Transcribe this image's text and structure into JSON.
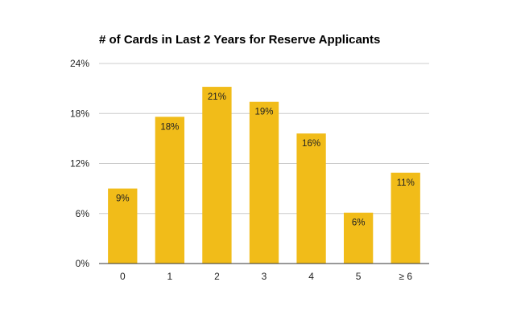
{
  "chart_data": {
    "type": "bar",
    "title": "# of Cards in Last 2 Years for Reserve Applicants",
    "xlabel": "",
    "ylabel": "",
    "categories": [
      "0",
      "1",
      "2",
      "3",
      "4",
      "5",
      "≥ 6"
    ],
    "values": [
      9,
      17.6,
      21.2,
      19.4,
      15.6,
      6.1,
      10.9
    ],
    "data_labels": [
      "9%",
      "18%",
      "21%",
      "19%",
      "16%",
      "6%",
      "11%"
    ],
    "ylim": [
      0,
      24
    ],
    "yticks": [
      0,
      6,
      12,
      18,
      24
    ],
    "ytick_labels": [
      "0%",
      "6%",
      "12%",
      "18%",
      "24%"
    ],
    "grid": true,
    "legend": "none",
    "bar_color": "#F1BC19",
    "grid_color": "#CCCCCC",
    "axis_color": "#333333"
  }
}
